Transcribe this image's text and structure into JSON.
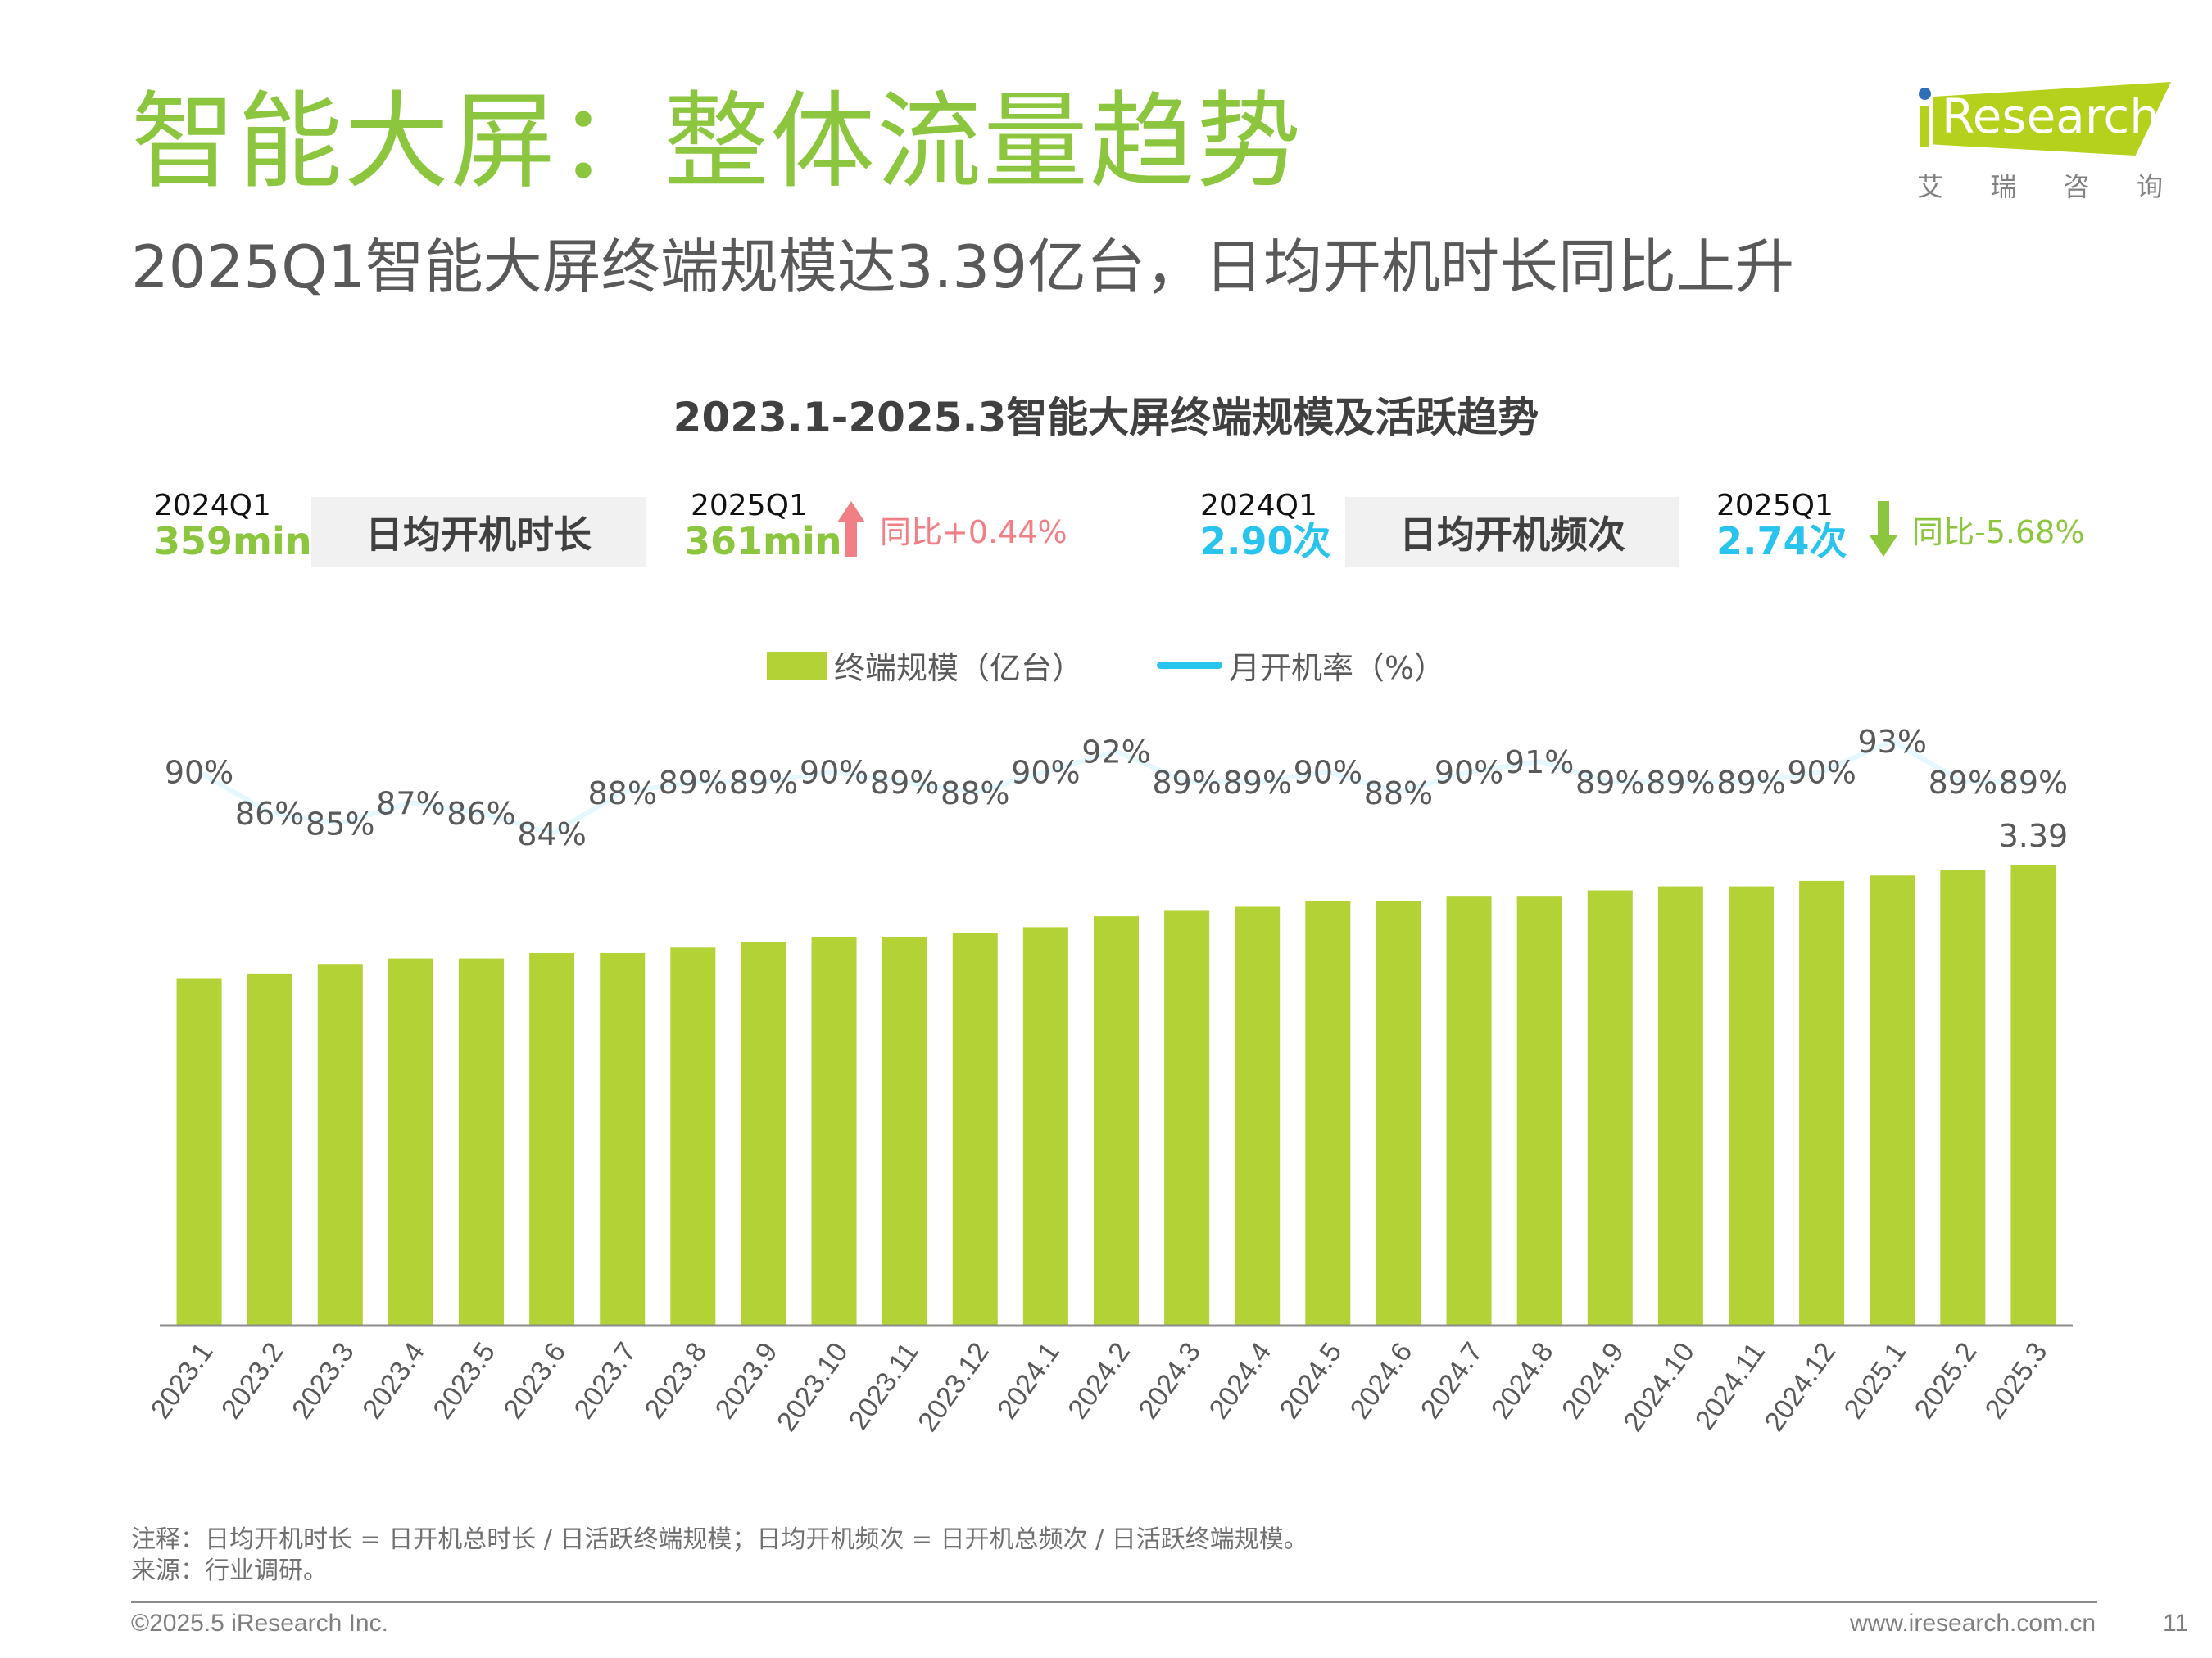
{
  "header": {
    "title": "智能大屏：整体流量趋势",
    "subtitle": "2025Q1智能大屏终端规模达3.39亿台，日均开机时长同比上升"
  },
  "logo": {
    "brand": "Research",
    "cn": [
      "艾",
      "瑞",
      "咨",
      "询"
    ]
  },
  "kpis": {
    "duration": {
      "prev_period": "2024Q1",
      "prev_value": "359min",
      "label": "日均开机时长",
      "curr_period": "2025Q1",
      "curr_value": "361min",
      "change": "同比+0.44%",
      "direction": "up",
      "value_color": "#8cc63f",
      "change_color": "#f07f86"
    },
    "frequency": {
      "prev_period": "2024Q1",
      "prev_value": "2.90次",
      "label": "日均开机频次",
      "curr_period": "2025Q1",
      "curr_value": "2.74次",
      "change": "同比-5.68%",
      "direction": "down",
      "value_color": "#29c4ee",
      "change_color": "#8cc63f"
    }
  },
  "chart_data": {
    "type": "bar",
    "title": "2023.1-2025.3智能大屏终端规模及活跃趋势",
    "categories": [
      "2023.1",
      "2023.2",
      "2023.3",
      "2023.4",
      "2023.5",
      "2023.6",
      "2023.7",
      "2023.8",
      "2023.9",
      "2023.10",
      "2023.11",
      "2023.12",
      "2024.1",
      "2024.2",
      "2024.3",
      "2024.4",
      "2024.5",
      "2024.6",
      "2024.7",
      "2024.8",
      "2024.9",
      "2024.10",
      "2024.11",
      "2024.12",
      "2025.1",
      "2025.2",
      "2025.3"
    ],
    "series": [
      {
        "name": "终端规模（亿台）",
        "type": "bar",
        "color": "#b2d235",
        "values": [
          2.55,
          2.59,
          2.66,
          2.7,
          2.7,
          2.74,
          2.74,
          2.78,
          2.82,
          2.86,
          2.86,
          2.89,
          2.93,
          3.01,
          3.05,
          3.08,
          3.12,
          3.12,
          3.16,
          3.16,
          3.2,
          3.23,
          3.23,
          3.27,
          3.31,
          3.35,
          3.39
        ],
        "labeled_points": {
          "2025.3": "3.39"
        }
      },
      {
        "name": "月开机率（%）",
        "type": "line",
        "color": "#29c4ee",
        "values": [
          90,
          86,
          85,
          87,
          86,
          84,
          88,
          89,
          89,
          90,
          89,
          88,
          90,
          92,
          89,
          89,
          90,
          88,
          90,
          91,
          89,
          89,
          89,
          90,
          93,
          89,
          89
        ],
        "value_suffix": "%"
      }
    ],
    "xlabel": "",
    "ylabel": "",
    "ylim": [
      0,
      3.39
    ],
    "grid": false,
    "legend": "top-center"
  },
  "footer": {
    "note": "注释：日均开机时长 = 日开机总时长 / 日活跃终端规模；日均开机频次 = 日开机总频次 / 日活跃终端规模。",
    "source": "来源：行业调研。",
    "copyright": "©2025.5 iResearch Inc.",
    "website": "www.iresearch.com.cn",
    "page_number": "11"
  }
}
